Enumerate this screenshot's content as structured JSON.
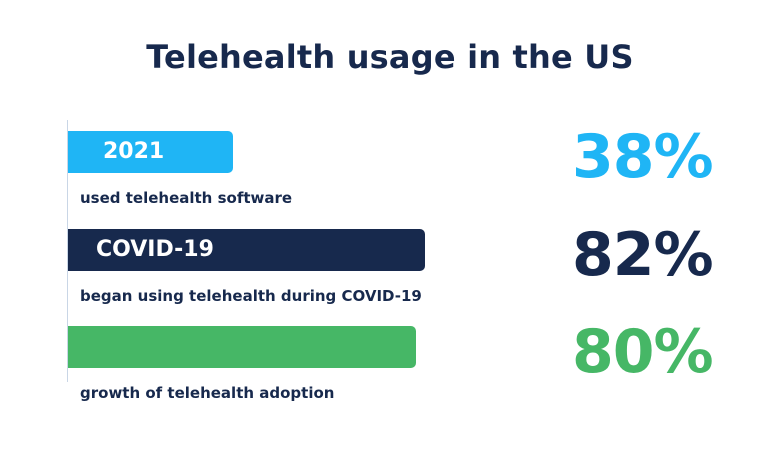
{
  "title": "Telehealth usage in the US",
  "colors": {
    "title": "#17294d",
    "2021": "#1fb5f5",
    "covid": "#17294d",
    "growth": "#46b766"
  },
  "chart_data": {
    "type": "bar",
    "orientation": "horizontal",
    "title": "Telehealth usage in the US",
    "xlabel": "",
    "ylabel": "",
    "xlim": [
      0,
      100
    ],
    "grid": false,
    "items": [
      {
        "label": "2021",
        "description": "used telehealth software",
        "value": 38,
        "display": "38%",
        "color": "#1fb5f5"
      },
      {
        "label": "COVID-19",
        "description": "began using telehealth during COVID-19",
        "value": 82,
        "display": "82%",
        "color": "#17294d"
      },
      {
        "label": "",
        "description": "growth of telehealth adoption",
        "value": 80,
        "display": "80%",
        "color": "#46b766"
      }
    ]
  }
}
